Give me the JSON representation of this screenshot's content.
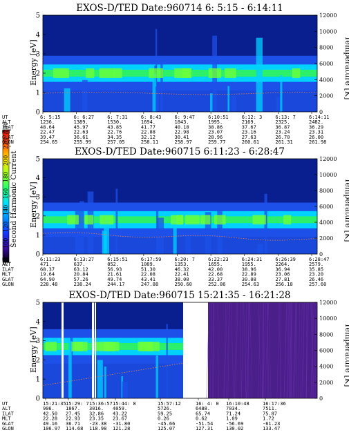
{
  "colors": {
    "bg_dark": "#0a1f8f",
    "band_blue": "#1c50e8",
    "band_cyan": "#00d2ff",
    "band_green": "#2cf06a",
    "band_lime": "#6cff3c",
    "purple_noise": "#4a1f8a",
    "temp_curve": "#e07a4a"
  },
  "colorbar": {
    "label": "Second Harmonic Current",
    "ticks": [
      "80",
      "100",
      "120",
      "140",
      "160",
      "180",
      "200",
      "220",
      "240"
    ],
    "stops": [
      "#000000",
      "#3a0aa0",
      "#1238ff",
      "#0090ff",
      "#00e0ff",
      "#20ff70",
      "#a0ff20",
      "#ffe000",
      "#ff6000",
      "#e00000"
    ]
  },
  "chart_data": [
    {
      "type": "heatmap",
      "title": "EXOS-D/TED   Date:960714   6: 5:15 - 6:14:11",
      "ylabel": "Energy [eV]",
      "ylabel_right": "Temperature [K]",
      "ylim": [
        0,
        5
      ],
      "ylim_right": [
        0,
        12000
      ],
      "y_ticks": [
        "0",
        "1",
        "2",
        "3",
        "4",
        "5"
      ],
      "y2_ticks": [
        "0",
        "2000",
        "4000",
        "6000",
        "8000",
        "10000",
        "12000"
      ],
      "orbit_labels": [
        "UT",
        "ALT",
        "ILAT",
        "MLT",
        "GLAT",
        "GLON"
      ],
      "orbit_columns": [
        [
          "6: 5:15",
          "1236.",
          "48.64",
          "22.47",
          "39.47",
          "254.65"
        ],
        [
          "6: 6:27",
          "1389.",
          "45.97",
          "22.63",
          "36.61",
          "255.99"
        ],
        [
          "6: 7:31",
          "1530.",
          "43.85",
          "22.76",
          "34.35",
          "257.05"
        ],
        [
          "6: 8:43",
          "1694.",
          "41.77",
          "22.88",
          "32.12",
          "258.11"
        ],
        [
          "6: 9:47",
          "1843.",
          "40.18",
          "22.98",
          "30.41",
          "258.97"
        ],
        [
          "6:10:51",
          "1995.",
          "38.86",
          "23.07",
          "28.96",
          "259.77"
        ],
        [
          "6:12: 3",
          "2169.",
          "37.67",
          "23.16",
          "27.63",
          "260.61"
        ],
        [
          "6:13: 7",
          "2325.",
          "36.87",
          "23.24",
          "26.70",
          "261.31"
        ],
        [
          "6:14:11",
          "2482.",
          "36.29",
          "23.31",
          "26.00",
          "261.98"
        ]
      ],
      "band_center_eV": 2.0
    },
    {
      "type": "heatmap",
      "title": "EXOS-D/TED   Date:960715   6:11:23 - 6:28:47",
      "ylabel": "Energy [eV]",
      "ylabel_right": "Temperature [K]",
      "ylim": [
        0,
        5
      ],
      "ylim_right": [
        0,
        12000
      ],
      "y_ticks": [
        "0",
        "1",
        "2",
        "3",
        "4",
        "5"
      ],
      "y2_ticks": [
        "0",
        "2000",
        "4000",
        "6000",
        "8000",
        "10000",
        "12000"
      ],
      "orbit_labels": [
        "UT",
        "ALT",
        "ILAT",
        "MLT",
        "GLAT",
        "GLON"
      ],
      "orbit_columns": [
        [
          "6:11:23",
          "471.",
          "68.37",
          "19.64",
          "64.90",
          "228.48"
        ],
        [
          "6:13:27",
          "637.",
          "63.12",
          "20.84",
          "57.26",
          "238.24"
        ],
        [
          "6:15:51",
          "852.",
          "56.93",
          "21.61",
          "49.74",
          "244.17"
        ],
        [
          "6:17:59",
          "1089.",
          "51.30",
          "22.08",
          "43.41",
          "247.88"
        ],
        [
          "6:20: 7",
          "1353.",
          "46.32",
          "22.41",
          "38.00",
          "250.60"
        ],
        [
          "6:22:23",
          "1655.",
          "42.00",
          "22.68",
          "33.37",
          "252.86"
        ],
        [
          "6:24:31",
          "1955.",
          "38.96",
          "22.89",
          "30.08",
          "254.63"
        ],
        [
          "6:26:39",
          "2264.",
          "36.94",
          "23.06",
          "27.81",
          "256.18"
        ],
        [
          "6:28:47",
          "2579.",
          "35.85",
          "23.20",
          "26.46",
          "257.60"
        ]
      ],
      "band_center_eV": 1.8
    },
    {
      "type": "heatmap",
      "title": "EXOS-D/TED   Date:960715   15:21:35 - 16:21:28",
      "ylabel": "Energy [eV]",
      "ylabel_right": "Temperature [K]",
      "ylim": [
        0,
        5
      ],
      "ylim_right": [
        0,
        12000
      ],
      "y_ticks": [
        "0",
        "1",
        "2",
        "3",
        "4",
        "5"
      ],
      "y2_ticks": [
        "0",
        "2000",
        "4000",
        "6000",
        "8000",
        "10000",
        "12000"
      ],
      "orbit_labels": [
        "UT",
        "ALT",
        "ILAT",
        "MLT",
        "GLAT",
        "GLON"
      ],
      "orbit_columns": [
        [
          "15:21:35",
          "906.",
          "42.50",
          "22.28",
          "49.16",
          "106.97"
        ],
        [
          "15:29: 7",
          "1867.",
          "27.45",
          "22.93",
          "36.71",
          "114.68"
        ],
        [
          "15:36:57",
          "3016.",
          "32.86",
          "23.35",
          "-23.38",
          "118.98"
        ],
        [
          "15:44: 8",
          "4059.",
          "43.22",
          "23.67",
          "-31.80",
          "121.28"
        ],
        [
          "15:57:12",
          "5726.",
          "59.25",
          "0.26",
          "-45.66",
          "125.07"
        ],
        [
          "16: 4: 0",
          "6488.",
          "65.74",
          "0.62",
          "-51.54",
          "127.31"
        ],
        [
          "16:10:48",
          "7034.",
          "71.24",
          "1.09",
          "-56.69",
          "130.02"
        ],
        [
          "16:17:36",
          "7511.",
          "75.87",
          "1.72",
          "-61.23",
          "133.47"
        ]
      ],
      "band_center_eV": 2.7
    }
  ]
}
